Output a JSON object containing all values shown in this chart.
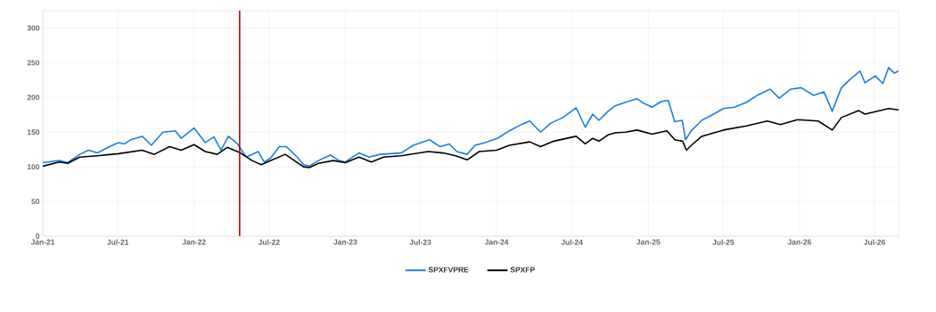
{
  "chart_data": {
    "type": "line",
    "grid": true,
    "legend": "bottom",
    "marker": "none",
    "line_style": "solid",
    "xlim": [
      "2021-01-01",
      "2026-08-28"
    ],
    "xticks": [
      {
        "value": "2021-01-01",
        "label": "Jan-21"
      },
      {
        "value": "2021-07-01",
        "label": "Jul-21"
      },
      {
        "value": "2022-01-01",
        "label": "Jan-22"
      },
      {
        "value": "2022-07-01",
        "label": "Jul-22"
      },
      {
        "value": "2023-01-01",
        "label": "Jan-23"
      },
      {
        "value": "2023-07-01",
        "label": "Jul-23"
      },
      {
        "value": "2024-01-01",
        "label": "Jan-24"
      },
      {
        "value": "2024-07-01",
        "label": "Jul-24"
      },
      {
        "value": "2025-01-01",
        "label": "Jan-25"
      },
      {
        "value": "2025-07-01",
        "label": "Jul-25"
      },
      {
        "value": "2026-01-01",
        "label": "Jan-26"
      },
      {
        "value": "2026-07-01",
        "label": "Jul-26"
      }
    ],
    "ylim": [
      0,
      325
    ],
    "yticks": [
      0,
      50,
      100,
      150,
      200,
      250,
      300
    ],
    "ref_lines": [
      {
        "axis": "x",
        "value": "2022-04-21",
        "color": "#c00000"
      }
    ],
    "series": [
      {
        "name": "SPXFVPRE",
        "color": "#1a7fe0",
        "x": [
          "2021-01-01",
          "2021-02-10",
          "2021-03-02",
          "2021-03-31",
          "2021-04-21",
          "2021-05-13",
          "2021-06-11",
          "2021-07-03",
          "2021-07-17",
          "2021-08-01",
          "2021-08-29",
          "2021-09-20",
          "2021-10-18",
          "2021-11-17",
          "2021-12-01",
          "2022-01-01",
          "2022-01-28",
          "2022-02-18",
          "2022-03-07",
          "2022-03-25",
          "2022-04-16",
          "2022-05-07",
          "2022-06-05",
          "2022-06-19",
          "2022-07-04",
          "2022-07-26",
          "2022-08-12",
          "2022-09-07",
          "2022-09-22",
          "2022-10-06",
          "2022-10-28",
          "2022-11-26",
          "2022-12-17",
          "2023-01-01",
          "2023-02-03",
          "2023-02-27",
          "2023-03-26",
          "2023-05-16",
          "2023-06-14",
          "2023-07-23",
          "2023-08-18",
          "2023-09-09",
          "2023-09-27",
          "2023-10-22",
          "2023-11-10",
          "2023-12-04",
          "2024-01-03",
          "2024-02-01",
          "2024-03-01",
          "2024-03-21",
          "2024-04-16",
          "2024-05-11",
          "2024-06-09",
          "2024-07-11",
          "2024-08-02",
          "2024-08-20",
          "2024-09-04",
          "2024-09-26",
          "2024-10-13",
          "2024-11-07",
          "2024-12-05",
          "2024-12-23",
          "2025-01-10",
          "2025-02-01",
          "2025-02-18",
          "2025-03-06",
          "2025-03-24",
          "2025-04-01",
          "2025-04-15",
          "2025-05-10",
          "2025-06-08",
          "2025-07-01",
          "2025-07-28",
          "2025-08-26",
          "2025-09-24",
          "2025-10-22",
          "2025-11-13",
          "2025-12-11",
          "2026-01-05",
          "2026-02-04",
          "2026-03-01",
          "2026-03-21",
          "2026-04-12",
          "2026-05-03",
          "2026-05-27",
          "2026-06-08",
          "2026-07-03",
          "2026-07-21",
          "2026-08-04",
          "2026-08-18",
          "2026-08-28"
        ],
        "values": [
          106,
          109,
          106,
          118,
          124,
          120,
          129,
          135,
          133,
          139,
          144,
          131,
          150,
          152,
          141,
          156,
          135,
          143,
          124,
          144,
          133,
          114,
          122,
          107,
          112,
          129,
          129,
          114,
          103,
          101,
          109,
          117,
          109,
          107,
          120,
          114,
          118,
          120,
          131,
          139,
          129,
          133,
          122,
          118,
          131,
          135,
          141,
          152,
          161,
          166,
          150,
          163,
          171,
          185,
          157,
          176,
          167,
          180,
          188,
          193,
          198,
          191,
          186,
          194,
          196,
          165,
          167,
          139,
          152,
          167,
          176,
          184,
          186,
          193,
          204,
          212,
          199,
          212,
          214,
          203,
          208,
          180,
          214,
          226,
          238,
          221,
          231,
          220,
          243,
          235,
          238
        ]
      },
      {
        "name": "SPXFP",
        "color": "#000000",
        "x": [
          "2021-01-01",
          "2021-02-10",
          "2021-03-02",
          "2021-03-31",
          "2021-05-13",
          "2021-07-03",
          "2021-08-29",
          "2021-09-27",
          "2021-11-03",
          "2021-12-01",
          "2022-01-01",
          "2022-01-28",
          "2022-02-26",
          "2022-03-22",
          "2022-04-23",
          "2022-05-21",
          "2022-06-12",
          "2022-06-27",
          "2022-08-09",
          "2022-09-22",
          "2022-10-06",
          "2022-10-28",
          "2022-12-03",
          "2023-01-01",
          "2023-02-03",
          "2023-03-05",
          "2023-04-03",
          "2023-05-16",
          "2023-07-20",
          "2023-08-25",
          "2023-09-24",
          "2023-10-22",
          "2023-11-20",
          "2024-01-01",
          "2024-02-01",
          "2024-03-21",
          "2024-04-16",
          "2024-05-18",
          "2024-07-11",
          "2024-08-02",
          "2024-08-20",
          "2024-09-04",
          "2024-09-26",
          "2024-10-13",
          "2024-11-07",
          "2024-12-05",
          "2025-01-10",
          "2025-02-15",
          "2025-03-06",
          "2025-03-25",
          "2025-04-03",
          "2025-04-15",
          "2025-05-10",
          "2025-07-01",
          "2025-08-26",
          "2025-10-15",
          "2025-11-16",
          "2025-12-27",
          "2026-02-15",
          "2026-03-21",
          "2026-04-12",
          "2026-05-24",
          "2026-06-08",
          "2026-08-04",
          "2026-08-28"
        ],
        "values": [
          101,
          107,
          105,
          114,
          116,
          119,
          124,
          118,
          129,
          124,
          132,
          122,
          118,
          128,
          120,
          109,
          103,
          107,
          118,
          100,
          99,
          105,
          109,
          106,
          114,
          107,
          114,
          116,
          122,
          120,
          116,
          110,
          122,
          124,
          131,
          136,
          129,
          137,
          144,
          133,
          141,
          137,
          146,
          149,
          150,
          153,
          147,
          152,
          139,
          137,
          124,
          131,
          144,
          153,
          159,
          166,
          161,
          168,
          166,
          153,
          171,
          181,
          176,
          184,
          182
        ]
      }
    ]
  }
}
